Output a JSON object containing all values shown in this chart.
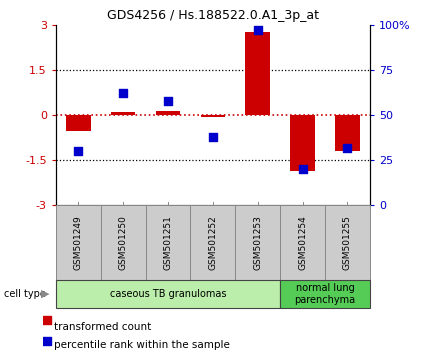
{
  "title": "GDS4256 / Hs.188522.0.A1_3p_at",
  "samples": [
    "GSM501249",
    "GSM501250",
    "GSM501251",
    "GSM501252",
    "GSM501253",
    "GSM501254",
    "GSM501255"
  ],
  "transformed_count": [
    -0.52,
    0.1,
    0.12,
    -0.05,
    2.75,
    -1.85,
    -1.2
  ],
  "percentile_rank": [
    30,
    62,
    58,
    38,
    97,
    20,
    32
  ],
  "ylim_left": [
    -3,
    3
  ],
  "ylim_right": [
    0,
    100
  ],
  "yticks_left": [
    -3,
    -1.5,
    0,
    1.5,
    3
  ],
  "ytick_labels_left": [
    "-3",
    "-1.5",
    "0",
    "1.5",
    "3"
  ],
  "yticks_right": [
    0,
    25,
    50,
    75,
    100
  ],
  "ytick_labels_right": [
    "0",
    "25",
    "50",
    "75",
    "100%"
  ],
  "bar_color": "#cc0000",
  "scatter_color": "#0000cc",
  "cell_types": [
    {
      "label": "caseous TB granulomas",
      "start": 0,
      "end": 5,
      "color": "#bbeeaa"
    },
    {
      "label": "normal lung\nparenchyma",
      "start": 5,
      "end": 7,
      "color": "#55cc55"
    }
  ],
  "cell_type_label": "cell type",
  "legend_bar_label": "transformed count",
  "legend_scatter_label": "percentile rank within the sample",
  "bar_width": 0.55,
  "scatter_size": 35,
  "bg_color": "#ffffff",
  "zero_line_color": "#cc0000",
  "dotted_line_color": "#000000",
  "tick_color_left": "#cc0000",
  "tick_color_right": "#0000cc",
  "sample_label_fontsize": 6.5,
  "title_fontsize": 9,
  "label_box_color": "#cccccc",
  "label_box_edge": "#888888"
}
